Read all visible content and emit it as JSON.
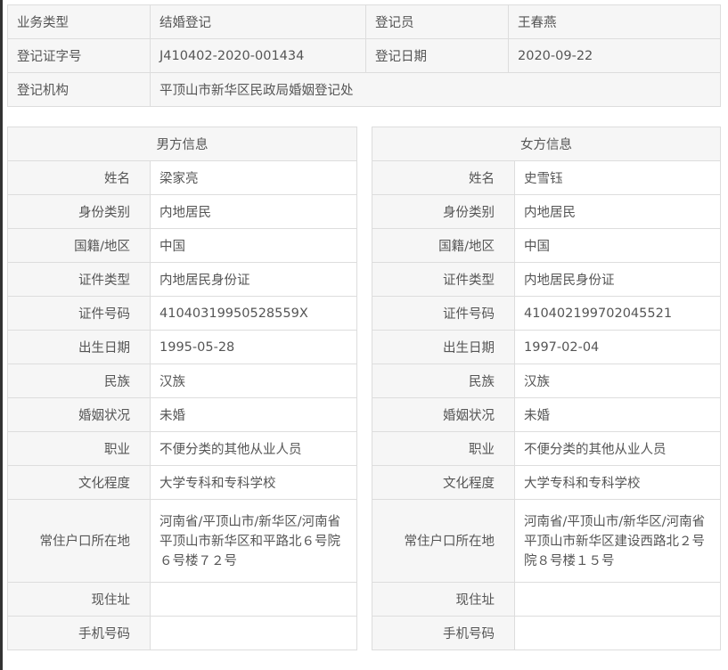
{
  "summary": {
    "business_type_label": "业务类型",
    "business_type": "结婚登记",
    "registrar_label": "登记员",
    "registrar": "王春燕",
    "cert_no_label": "登记证字号",
    "cert_no": "J410402-2020-001434",
    "reg_date_label": "登记日期",
    "reg_date": "2020-09-22",
    "office_label": "登记机构",
    "office": "平顶山市新华区民政局婚姻登记处"
  },
  "labels": [
    "姓名",
    "身份类别",
    "国籍/地区",
    "证件类型",
    "证件号码",
    "出生日期",
    "民族",
    "婚姻状况",
    "职业",
    "文化程度",
    "常住户口所在地",
    "现住址",
    "手机号码"
  ],
  "male": {
    "title": "男方信息",
    "values": [
      "梁家亮",
      "内地居民",
      "中国",
      "内地居民身份证",
      "41040319950528559X",
      "1995-05-28",
      "汉族",
      "未婚",
      "不便分类的其他从业人员",
      "大学专科和专科学校",
      "河南省/平顶山市/新华区/河南省平顶山市新华区和平路北６号院６号楼７２号",
      "",
      ""
    ]
  },
  "female": {
    "title": "女方信息",
    "values": [
      "史雪钰",
      "内地居民",
      "中国",
      "内地居民身份证",
      "410402199702045521",
      "1997-02-04",
      "汉族",
      "未婚",
      "不便分类的其他从业人员",
      "大学专科和专科学校",
      "河南省/平顶山市/新华区/河南省平顶山市新华区建设西路北２号院８号楼１５号",
      "",
      ""
    ]
  }
}
